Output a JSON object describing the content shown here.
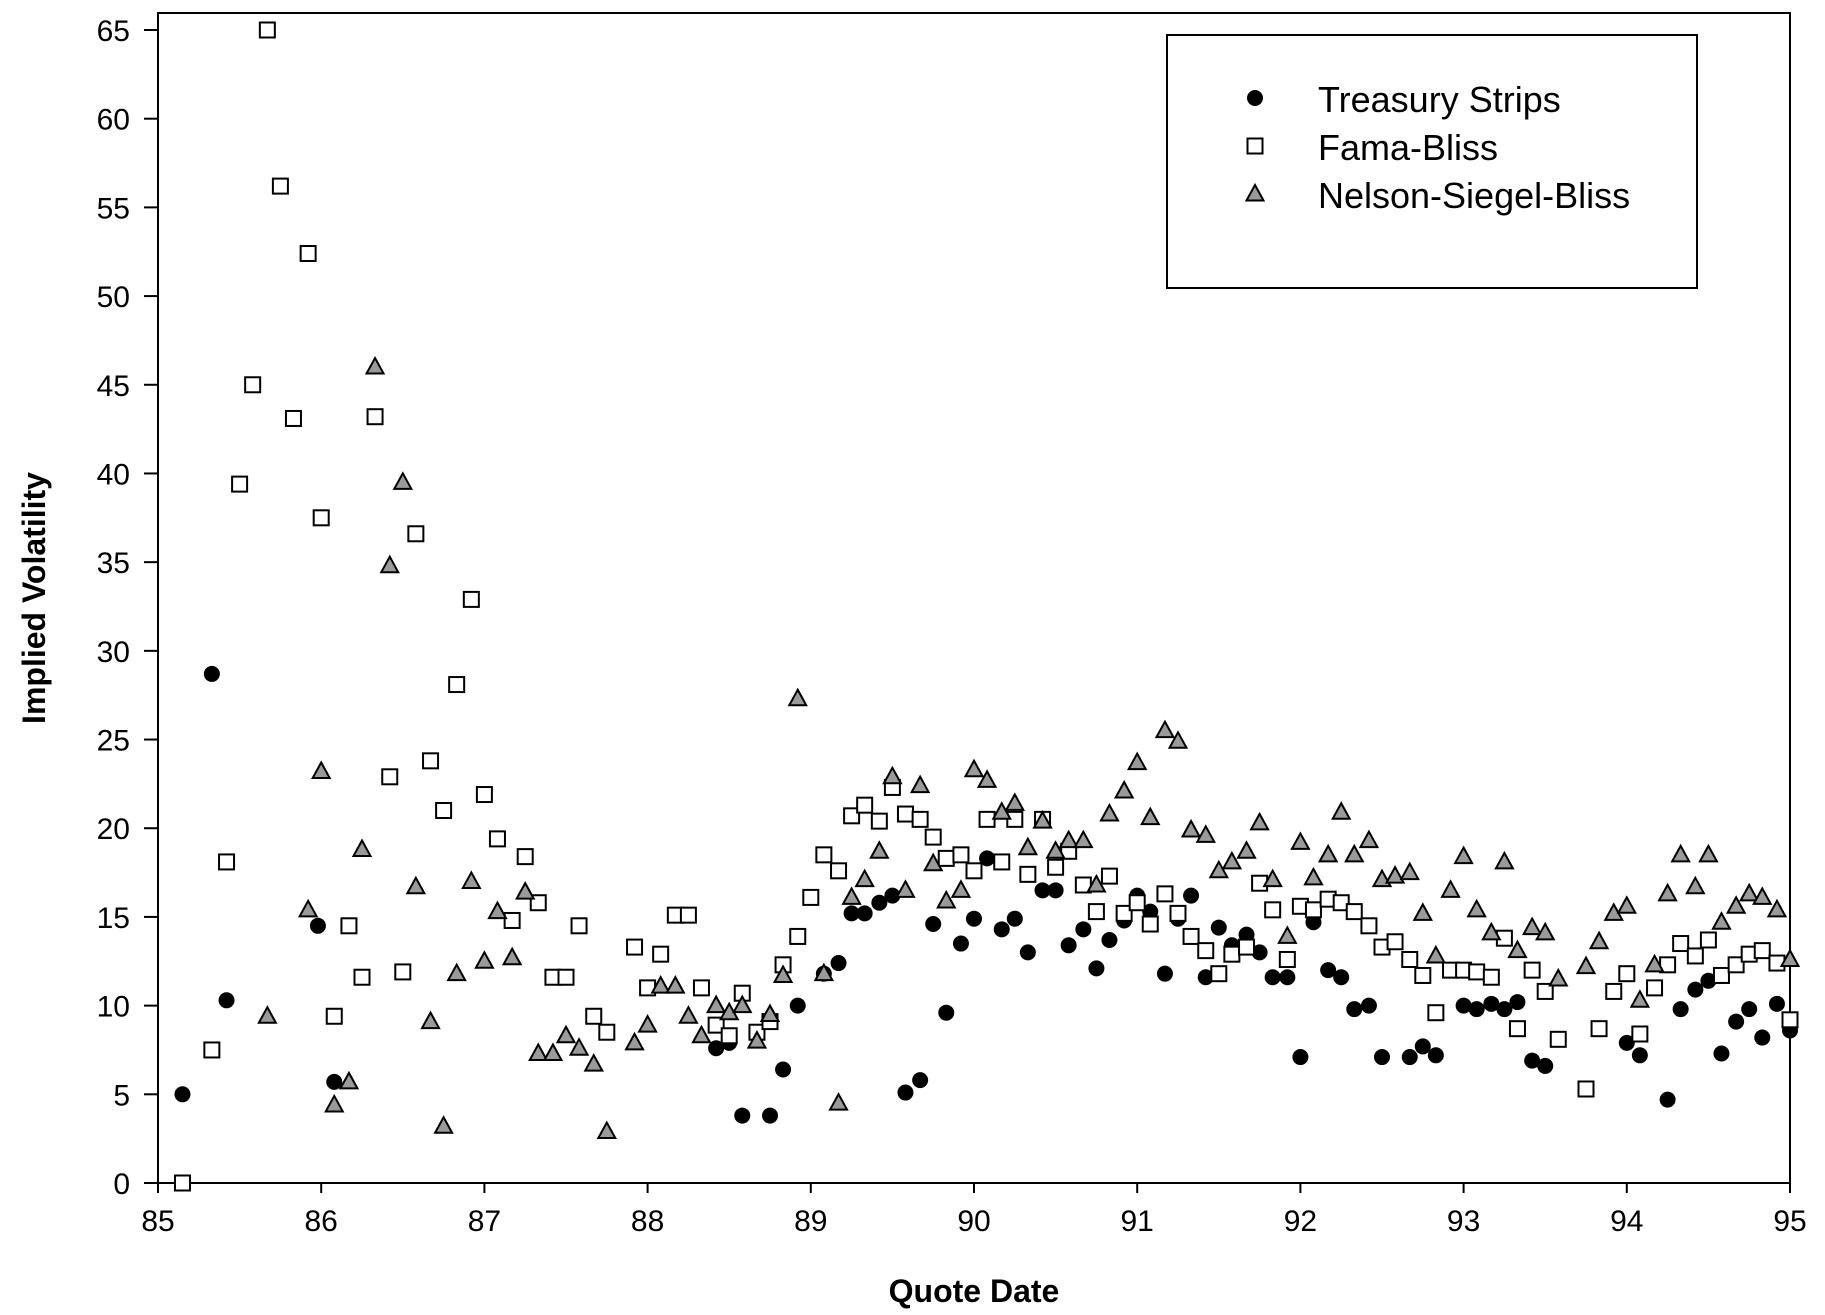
{
  "chart_data": {
    "type": "scatter",
    "title": "",
    "xlabel": "Quote Date",
    "ylabel": "Implied Volatility",
    "xlim": [
      85,
      95
    ],
    "ylim": [
      0,
      65
    ],
    "x_ticks": [
      85,
      86,
      87,
      88,
      89,
      90,
      91,
      92,
      93,
      94,
      95
    ],
    "y_ticks": [
      0,
      5,
      10,
      15,
      20,
      25,
      30,
      35,
      40,
      45,
      50,
      55,
      60,
      65
    ],
    "x_tick_labels": [
      "85",
      "86",
      "87",
      "88",
      "89",
      "90",
      "91",
      "92",
      "93",
      "94",
      "95"
    ],
    "y_tick_labels": [
      "0",
      "5",
      "10",
      "15",
      "20",
      "25",
      "30",
      "35",
      "40",
      "45",
      "50",
      "55",
      "60",
      "65"
    ],
    "grid": false,
    "legend_position": "top-right",
    "series": [
      {
        "name": "Treasury Strips",
        "marker": "filled-circle",
        "color": "#000000",
        "points": [
          [
            85.15,
            5.0
          ],
          [
            85.33,
            28.7
          ],
          [
            85.42,
            10.3
          ],
          [
            85.98,
            14.5
          ],
          [
            86.08,
            5.7
          ],
          [
            88.42,
            7.6
          ],
          [
            88.5,
            7.9
          ],
          [
            88.58,
            3.8
          ],
          [
            88.75,
            3.8
          ],
          [
            88.83,
            6.4
          ],
          [
            88.92,
            10.0
          ],
          [
            89.08,
            11.8
          ],
          [
            89.17,
            12.4
          ],
          [
            89.25,
            15.2
          ],
          [
            89.33,
            15.2
          ],
          [
            89.42,
            15.8
          ],
          [
            89.5,
            16.2
          ],
          [
            89.58,
            5.1
          ],
          [
            89.67,
            5.8
          ],
          [
            89.75,
            14.6
          ],
          [
            89.83,
            9.6
          ],
          [
            89.92,
            13.5
          ],
          [
            90.0,
            14.9
          ],
          [
            90.08,
            18.3
          ],
          [
            90.17,
            14.3
          ],
          [
            90.25,
            14.9
          ],
          [
            90.33,
            13.0
          ],
          [
            90.42,
            16.5
          ],
          [
            90.5,
            16.5
          ],
          [
            90.58,
            13.4
          ],
          [
            90.67,
            14.3
          ],
          [
            90.75,
            12.1
          ],
          [
            90.83,
            13.7
          ],
          [
            90.92,
            14.8
          ],
          [
            91.0,
            16.2
          ],
          [
            91.08,
            15.3
          ],
          [
            91.17,
            11.8
          ],
          [
            91.25,
            14.9
          ],
          [
            91.33,
            16.2
          ],
          [
            91.42,
            11.6
          ],
          [
            91.5,
            14.4
          ],
          [
            91.58,
            13.4
          ],
          [
            91.67,
            14.0
          ],
          [
            91.75,
            13.0
          ],
          [
            91.83,
            11.6
          ],
          [
            91.92,
            11.6
          ],
          [
            92.0,
            7.1
          ],
          [
            92.08,
            14.7
          ],
          [
            92.17,
            12.0
          ],
          [
            92.25,
            11.6
          ],
          [
            92.33,
            9.8
          ],
          [
            92.42,
            10.0
          ],
          [
            92.5,
            7.1
          ],
          [
            92.67,
            7.1
          ],
          [
            92.75,
            7.7
          ],
          [
            92.83,
            7.2
          ],
          [
            93.0,
            10.0
          ],
          [
            93.08,
            9.8
          ],
          [
            93.17,
            10.1
          ],
          [
            93.25,
            9.8
          ],
          [
            93.33,
            10.2
          ],
          [
            93.42,
            6.9
          ],
          [
            93.5,
            6.6
          ],
          [
            94.0,
            7.9
          ],
          [
            94.08,
            7.2
          ],
          [
            94.25,
            4.7
          ],
          [
            94.33,
            9.8
          ],
          [
            94.42,
            10.9
          ],
          [
            94.5,
            11.4
          ],
          [
            94.58,
            7.3
          ],
          [
            94.67,
            9.1
          ],
          [
            94.75,
            9.8
          ],
          [
            94.83,
            8.2
          ],
          [
            94.92,
            10.1
          ],
          [
            95.0,
            8.6
          ]
        ]
      },
      {
        "name": "Fama-Bliss",
        "marker": "open-square",
        "color": "#000000",
        "points": [
          [
            85.15,
            0.0
          ],
          [
            85.33,
            7.5
          ],
          [
            85.42,
            18.1
          ],
          [
            85.5,
            39.4
          ],
          [
            85.58,
            45.0
          ],
          [
            85.67,
            65.0
          ],
          [
            85.75,
            56.2
          ],
          [
            85.83,
            43.1
          ],
          [
            85.92,
            52.4
          ],
          [
            86.0,
            37.5
          ],
          [
            86.08,
            9.4
          ],
          [
            86.17,
            14.5
          ],
          [
            86.25,
            11.6
          ],
          [
            86.33,
            43.2
          ],
          [
            86.42,
            22.9
          ],
          [
            86.5,
            11.9
          ],
          [
            86.58,
            36.6
          ],
          [
            86.67,
            23.8
          ],
          [
            86.75,
            21.0
          ],
          [
            86.83,
            28.1
          ],
          [
            86.92,
            32.9
          ],
          [
            87.0,
            21.9
          ],
          [
            87.08,
            19.4
          ],
          [
            87.17,
            14.8
          ],
          [
            87.25,
            18.4
          ],
          [
            87.33,
            15.8
          ],
          [
            87.42,
            11.6
          ],
          [
            87.5,
            11.6
          ],
          [
            87.58,
            14.5
          ],
          [
            87.67,
            9.4
          ],
          [
            87.75,
            8.5
          ],
          [
            87.92,
            13.3
          ],
          [
            88.0,
            11.0
          ],
          [
            88.08,
            12.9
          ],
          [
            88.17,
            15.1
          ],
          [
            88.25,
            15.1
          ],
          [
            88.33,
            11.0
          ],
          [
            88.42,
            8.9
          ],
          [
            88.5,
            8.3
          ],
          [
            88.58,
            10.7
          ],
          [
            88.67,
            8.5
          ],
          [
            88.75,
            9.1
          ],
          [
            88.83,
            12.3
          ],
          [
            88.92,
            13.9
          ],
          [
            89.0,
            16.1
          ],
          [
            89.08,
            18.5
          ],
          [
            89.17,
            17.6
          ],
          [
            89.25,
            20.7
          ],
          [
            89.33,
            21.3
          ],
          [
            89.42,
            20.4
          ],
          [
            89.5,
            22.3
          ],
          [
            89.58,
            20.8
          ],
          [
            89.67,
            20.5
          ],
          [
            89.75,
            19.5
          ],
          [
            89.83,
            18.3
          ],
          [
            89.92,
            18.5
          ],
          [
            90.0,
            17.6
          ],
          [
            90.08,
            20.5
          ],
          [
            90.17,
            18.1
          ],
          [
            90.25,
            20.5
          ],
          [
            90.33,
            17.4
          ],
          [
            90.42,
            20.5
          ],
          [
            90.5,
            17.8
          ],
          [
            90.58,
            18.7
          ],
          [
            90.67,
            16.8
          ],
          [
            90.75,
            15.3
          ],
          [
            90.83,
            17.3
          ],
          [
            90.92,
            15.2
          ],
          [
            91.0,
            15.8
          ],
          [
            91.08,
            14.6
          ],
          [
            91.17,
            16.3
          ],
          [
            91.25,
            15.2
          ],
          [
            91.33,
            13.9
          ],
          [
            91.42,
            13.1
          ],
          [
            91.5,
            11.8
          ],
          [
            91.58,
            12.9
          ],
          [
            91.67,
            13.3
          ],
          [
            91.75,
            16.9
          ],
          [
            91.83,
            15.4
          ],
          [
            91.92,
            12.6
          ],
          [
            92.0,
            15.6
          ],
          [
            92.08,
            15.4
          ],
          [
            92.17,
            16.0
          ],
          [
            92.25,
            15.8
          ],
          [
            92.33,
            15.3
          ],
          [
            92.42,
            14.5
          ],
          [
            92.5,
            13.3
          ],
          [
            92.58,
            13.6
          ],
          [
            92.67,
            12.6
          ],
          [
            92.75,
            11.7
          ],
          [
            92.83,
            9.6
          ],
          [
            92.92,
            12.0
          ],
          [
            93.0,
            12.0
          ],
          [
            93.08,
            11.9
          ],
          [
            93.17,
            11.6
          ],
          [
            93.25,
            13.8
          ],
          [
            93.33,
            8.7
          ],
          [
            93.42,
            12.0
          ],
          [
            93.5,
            10.8
          ],
          [
            93.58,
            8.1
          ],
          [
            93.75,
            5.3
          ],
          [
            93.83,
            8.7
          ],
          [
            93.92,
            10.8
          ],
          [
            94.0,
            11.8
          ],
          [
            94.08,
            8.4
          ],
          [
            94.17,
            11.0
          ],
          [
            94.25,
            12.3
          ],
          [
            94.33,
            13.5
          ],
          [
            94.42,
            12.8
          ],
          [
            94.5,
            13.7
          ],
          [
            94.58,
            11.7
          ],
          [
            94.67,
            12.3
          ],
          [
            94.75,
            12.9
          ],
          [
            94.83,
            13.1
          ],
          [
            94.92,
            12.4
          ],
          [
            95.0,
            9.2
          ]
        ]
      },
      {
        "name": "Nelson-Siegel-Bliss",
        "marker": "triangle",
        "color": "#000000",
        "points": [
          [
            85.67,
            9.4
          ],
          [
            85.92,
            15.4
          ],
          [
            86.0,
            23.2
          ],
          [
            86.08,
            4.4
          ],
          [
            86.17,
            5.7
          ],
          [
            86.25,
            18.8
          ],
          [
            86.33,
            46.0
          ],
          [
            86.42,
            34.8
          ],
          [
            86.5,
            39.5
          ],
          [
            86.58,
            16.7
          ],
          [
            86.67,
            9.1
          ],
          [
            86.75,
            3.2
          ],
          [
            86.83,
            11.8
          ],
          [
            86.92,
            17.0
          ],
          [
            87.0,
            12.5
          ],
          [
            87.08,
            15.3
          ],
          [
            87.17,
            12.7
          ],
          [
            87.25,
            16.4
          ],
          [
            87.33,
            7.3
          ],
          [
            87.42,
            7.3
          ],
          [
            87.5,
            8.3
          ],
          [
            87.58,
            7.6
          ],
          [
            87.67,
            6.7
          ],
          [
            87.75,
            2.9
          ],
          [
            87.92,
            7.9
          ],
          [
            88.0,
            8.9
          ],
          [
            88.08,
            11.1
          ],
          [
            88.17,
            11.1
          ],
          [
            88.25,
            9.4
          ],
          [
            88.33,
            8.3
          ],
          [
            88.42,
            10.0
          ],
          [
            88.5,
            9.6
          ],
          [
            88.58,
            10.0
          ],
          [
            88.67,
            8.0
          ],
          [
            88.75,
            9.5
          ],
          [
            88.83,
            11.7
          ],
          [
            88.92,
            27.3
          ],
          [
            89.08,
            11.8
          ],
          [
            89.17,
            4.5
          ],
          [
            89.25,
            16.1
          ],
          [
            89.33,
            17.1
          ],
          [
            89.42,
            18.7
          ],
          [
            89.5,
            22.9
          ],
          [
            89.58,
            16.5
          ],
          [
            89.67,
            22.4
          ],
          [
            89.75,
            18.0
          ],
          [
            89.83,
            15.9
          ],
          [
            89.92,
            16.5
          ],
          [
            90.0,
            23.3
          ],
          [
            90.08,
            22.7
          ],
          [
            90.17,
            20.9
          ],
          [
            90.25,
            21.4
          ],
          [
            90.33,
            18.9
          ],
          [
            90.42,
            20.4
          ],
          [
            90.5,
            18.7
          ],
          [
            90.58,
            19.3
          ],
          [
            90.67,
            19.3
          ],
          [
            90.75,
            16.8
          ],
          [
            90.83,
            20.8
          ],
          [
            90.92,
            22.1
          ],
          [
            91.0,
            23.7
          ],
          [
            91.08,
            20.6
          ],
          [
            91.17,
            25.5
          ],
          [
            91.25,
            24.9
          ],
          [
            91.33,
            19.9
          ],
          [
            91.42,
            19.6
          ],
          [
            91.5,
            17.6
          ],
          [
            91.58,
            18.1
          ],
          [
            91.67,
            18.7
          ],
          [
            91.75,
            20.3
          ],
          [
            91.83,
            17.1
          ],
          [
            91.92,
            13.9
          ],
          [
            92.0,
            19.2
          ],
          [
            92.08,
            17.2
          ],
          [
            92.17,
            18.5
          ],
          [
            92.25,
            20.9
          ],
          [
            92.33,
            18.5
          ],
          [
            92.42,
            19.3
          ],
          [
            92.5,
            17.1
          ],
          [
            92.58,
            17.3
          ],
          [
            92.67,
            17.5
          ],
          [
            92.75,
            15.2
          ],
          [
            92.83,
            12.8
          ],
          [
            92.92,
            16.5
          ],
          [
            93.0,
            18.4
          ],
          [
            93.08,
            15.4
          ],
          [
            93.17,
            14.1
          ],
          [
            93.25,
            18.1
          ],
          [
            93.33,
            13.1
          ],
          [
            93.42,
            14.4
          ],
          [
            93.5,
            14.1
          ],
          [
            93.58,
            11.5
          ],
          [
            93.75,
            12.2
          ],
          [
            93.83,
            13.6
          ],
          [
            93.92,
            15.2
          ],
          [
            94.0,
            15.6
          ],
          [
            94.08,
            10.3
          ],
          [
            94.17,
            12.3
          ],
          [
            94.25,
            16.3
          ],
          [
            94.33,
            18.5
          ],
          [
            94.42,
            16.7
          ],
          [
            94.5,
            18.5
          ],
          [
            94.58,
            14.7
          ],
          [
            94.67,
            15.6
          ],
          [
            94.75,
            16.3
          ],
          [
            94.83,
            16.1
          ],
          [
            94.92,
            15.4
          ],
          [
            95.0,
            12.6
          ]
        ]
      }
    ]
  }
}
